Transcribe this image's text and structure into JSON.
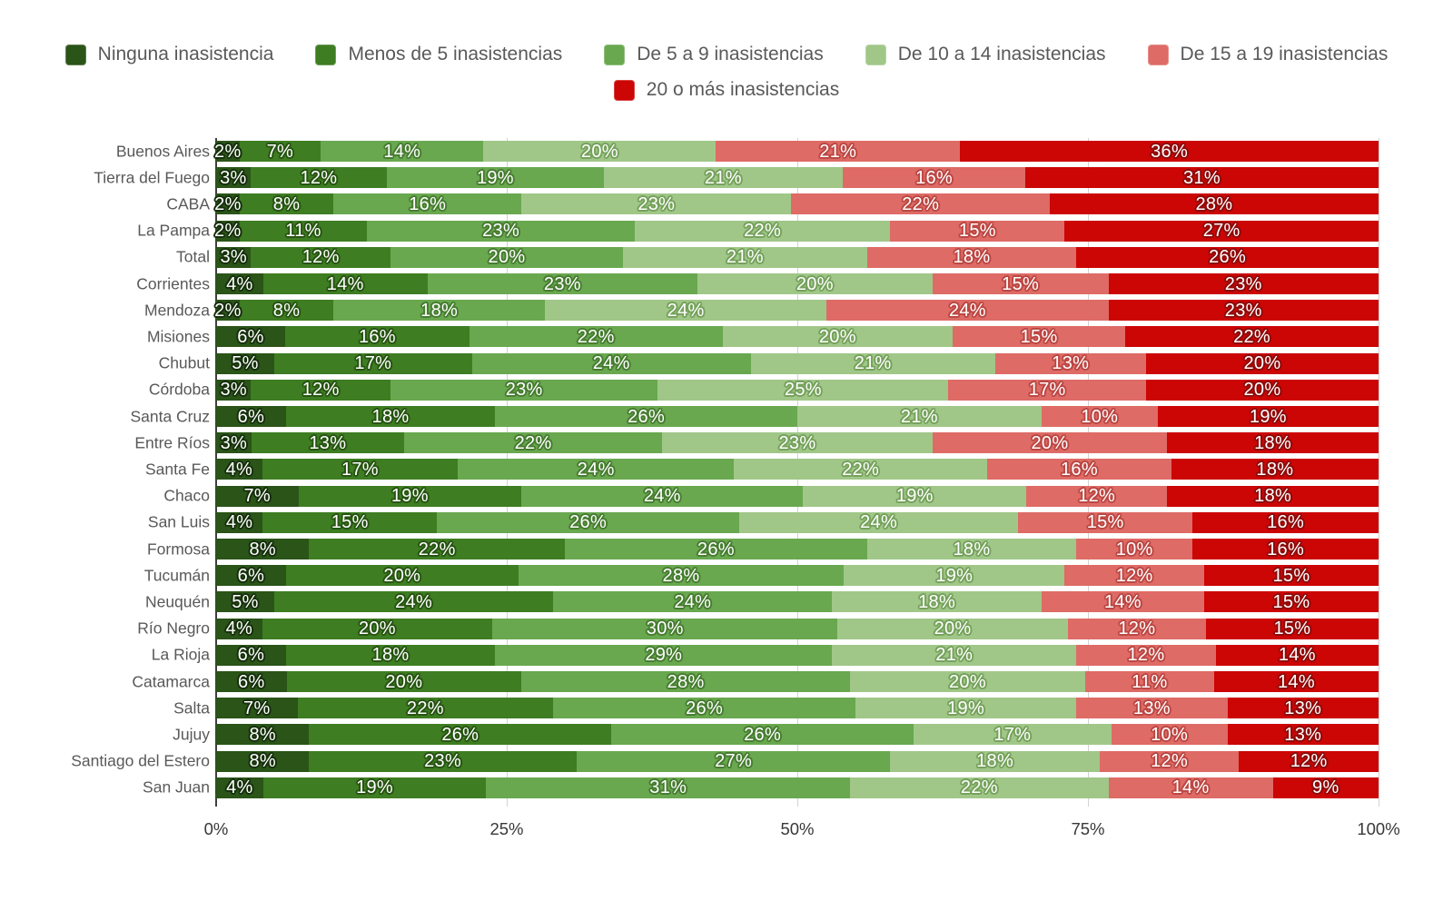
{
  "chart_data": {
    "type": "bar",
    "variant": "stacked-horizontal-percent",
    "title": "",
    "xlabel": "",
    "ylabel": "",
    "xlim": [
      0,
      100
    ],
    "x_tick_labels": [
      "0%",
      "25%",
      "50%",
      "75%",
      "100%"
    ],
    "x_tick_positions": [
      0,
      25,
      50,
      75,
      100
    ],
    "grid": true,
    "legend_position": "top",
    "value_suffix": "%",
    "grid_color": "#d2d2d2",
    "axis_line_color": "#3f3f3f",
    "label_text_color": "#595959",
    "tick_text_color": "#383838",
    "categories": [
      "Buenos Aires",
      "Tierra del Fuego",
      "CABA",
      "La Pampa",
      "Total",
      "Corrientes",
      "Mendoza",
      "Misiones",
      "Chubut",
      "Córdoba",
      "Santa Cruz",
      "Entre Ríos",
      "Santa Fe",
      "Chaco",
      "San Luis",
      "Formosa",
      "Tucumán",
      "Neuquén",
      "Río Negro",
      "La Rioja",
      "Catamarca",
      "Salta",
      "Jujuy",
      "Santiago del Estero",
      "San Juan"
    ],
    "series": [
      {
        "name": "Ninguna inasistencia",
        "color": "#2a5418",
        "halo": "#16300c",
        "values": [
          2,
          3,
          2,
          2,
          3,
          4,
          2,
          6,
          5,
          3,
          6,
          3,
          4,
          7,
          4,
          8,
          6,
          5,
          4,
          6,
          6,
          7,
          8,
          8,
          4
        ]
      },
      {
        "name": "Menos de 5 inasistencias",
        "color": "#3e7d22",
        "halo": "#275412",
        "values": [
          7,
          12,
          8,
          11,
          12,
          14,
          8,
          16,
          17,
          12,
          18,
          13,
          17,
          19,
          15,
          22,
          20,
          24,
          20,
          18,
          20,
          22,
          26,
          23,
          19
        ]
      },
      {
        "name": "De 5 a 9 inasistencias",
        "color": "#69a84f",
        "halo": "#477d31",
        "values": [
          14,
          19,
          16,
          23,
          20,
          23,
          18,
          22,
          24,
          23,
          26,
          22,
          24,
          24,
          26,
          26,
          28,
          24,
          30,
          29,
          28,
          26,
          26,
          27,
          31
        ]
      },
      {
        "name": "De 10 a 14 inasistencias",
        "color": "#a0c788",
        "halo": "#76a25c",
        "values": [
          20,
          21,
          23,
          22,
          21,
          20,
          24,
          20,
          21,
          25,
          21,
          23,
          22,
          19,
          24,
          18,
          19,
          18,
          20,
          21,
          20,
          19,
          17,
          18,
          22
        ]
      },
      {
        "name": "De 15 a 19 inasistencias",
        "color": "#de6b66",
        "halo": "#bc4743",
        "values": [
          21,
          16,
          22,
          15,
          18,
          15,
          24,
          15,
          13,
          17,
          10,
          20,
          16,
          12,
          15,
          10,
          12,
          14,
          12,
          12,
          11,
          13,
          10,
          12,
          14
        ]
      },
      {
        "name": "20 o más inasistencias",
        "color": "#cc0505",
        "halo": "#8e0b0b",
        "values": [
          36,
          31,
          28,
          27,
          26,
          23,
          23,
          22,
          20,
          20,
          19,
          18,
          18,
          18,
          16,
          16,
          15,
          15,
          15,
          14,
          14,
          13,
          13,
          12,
          9
        ]
      }
    ]
  }
}
